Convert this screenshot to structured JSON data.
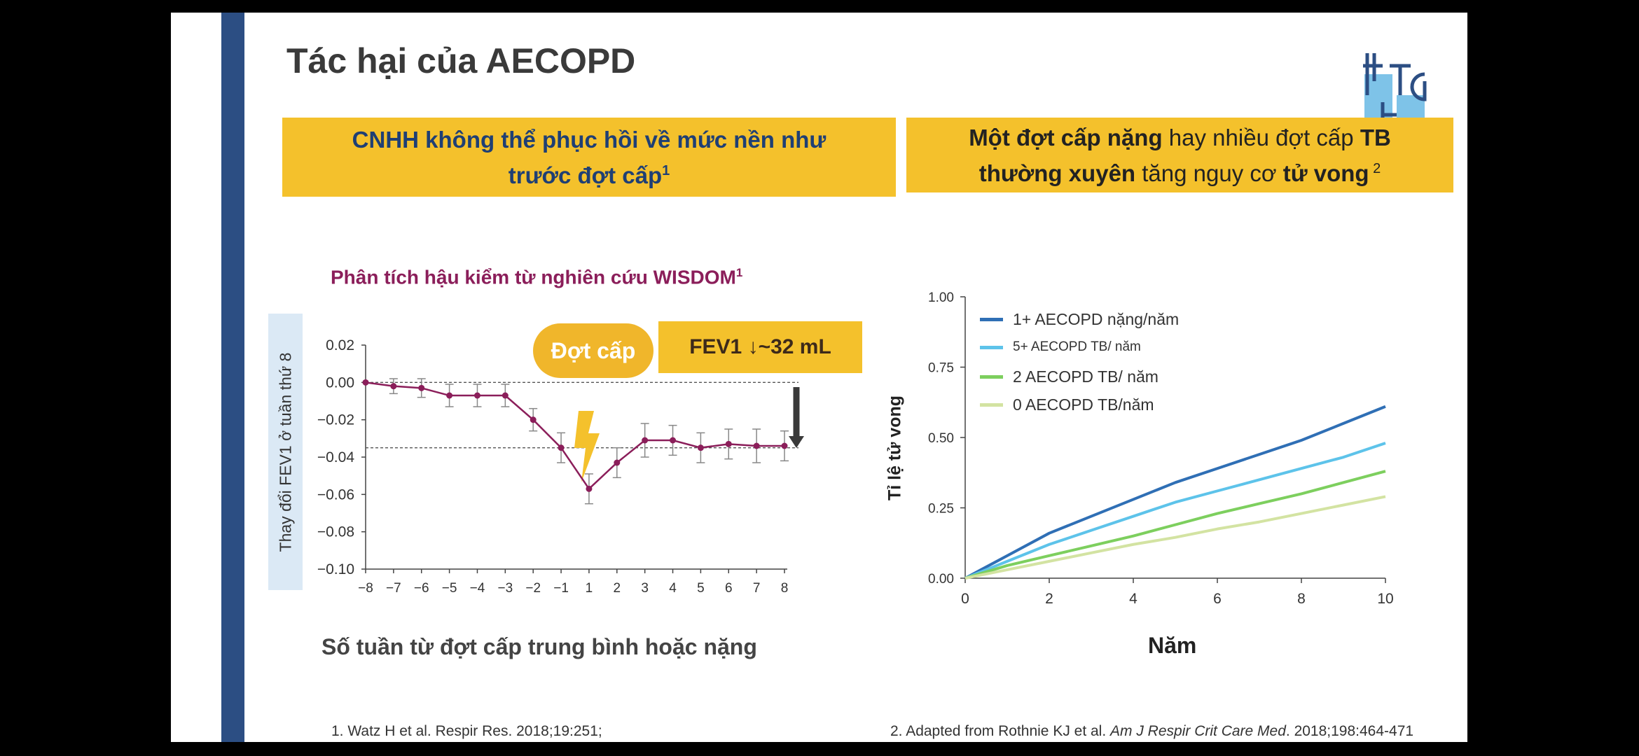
{
  "slide": {
    "title": "Tác hại của AECOPD",
    "banner_left": {
      "line1": "CNHH không thể phục hồi về mức nền như",
      "line2": "trước đợt cấp",
      "sup": "1"
    },
    "banner_right": {
      "p1_bold": "Một đợt cấp nặng",
      "p1_rest": " hay nhiều đợt cấp ",
      "p1_bold2": "TB",
      "p2_bold": "thường xuyên",
      "p2_rest": " tăng nguy cơ ",
      "p2_bold2": "tử vong",
      "sup": " 2"
    },
    "left_subtitle": "Phân tích hậu kiểm từ nghiên cứu WISDOM",
    "left_subtitle_sup": "1",
    "pill_label": "Đợt cấp",
    "fev_label": "FEV1 ↓~32 mL",
    "ref1": "1. Watz H et al. Respir Res. 2018;19:251;",
    "ref2_prefix": "2. Adapted from Rothnie KJ et al. ",
    "ref2_journal": "Am J Respir Crit Care Med",
    "ref2_suffix": ". 2018;198:464-471"
  },
  "chart_data": [
    {
      "type": "line",
      "title": "",
      "xlabel": "Số tuần từ đợt cấp trung bình hoặc nặng",
      "ylabel": "Thay đổi FEV1 ở tuần thứ 8",
      "x": [
        -8,
        -7,
        -6,
        -5,
        -4,
        -3,
        -2,
        -1,
        1,
        2,
        3,
        4,
        5,
        6,
        7,
        8
      ],
      "xticks": [
        "−8",
        "−7",
        "−6",
        "−5",
        "−4",
        "−3",
        "−2",
        "−1",
        "1",
        "2",
        "3",
        "4",
        "5",
        "6",
        "7",
        "8"
      ],
      "yticks": [
        "0.02",
        "0.00",
        "−0.02",
        "−0.04",
        "−0.06",
        "−0.08",
        "−0.10"
      ],
      "ylim": [
        -0.1,
        0.02
      ],
      "series": [
        {
          "values": [
            0.0,
            -0.002,
            -0.003,
            -0.007,
            -0.007,
            -0.007,
            -0.02,
            -0.035,
            -0.057,
            -0.043,
            -0.031,
            -0.031,
            -0.035,
            -0.033,
            -0.034,
            -0.034
          ],
          "error": [
            0.0,
            0.004,
            0.005,
            0.006,
            0.006,
            0.006,
            0.006,
            0.008,
            0.008,
            0.008,
            0.009,
            0.008,
            0.008,
            0.008,
            0.009,
            0.008
          ],
          "color": "#8b1e5a"
        }
      ],
      "reference_lines": [
        0.0,
        -0.035
      ],
      "grid": false
    },
    {
      "type": "line",
      "title": "",
      "xlabel": "Năm",
      "ylabel": "Tỉ lệ tử vong",
      "xticks": [
        "0",
        "2",
        "4",
        "6",
        "8",
        "10"
      ],
      "yticks": [
        "0.00",
        "0.25",
        "0.50",
        "0.75",
        "1.00"
      ],
      "xlim": [
        0,
        10
      ],
      "ylim": [
        0,
        1
      ],
      "legend_position": "top-left",
      "series": [
        {
          "name": "1+ AECOPD nặng/năm",
          "color": "#2f6fb5",
          "x": [
            0,
            1,
            2,
            3,
            4,
            5,
            6,
            7,
            8,
            9,
            10
          ],
          "values": [
            0,
            0.08,
            0.16,
            0.22,
            0.28,
            0.34,
            0.39,
            0.44,
            0.49,
            0.55,
            0.61
          ]
        },
        {
          "name": "5+ AECOPD TB/ năm",
          "color": "#5dc3ea",
          "x": [
            0,
            1,
            2,
            3,
            4,
            5,
            6,
            7,
            8,
            9,
            10
          ],
          "values": [
            0,
            0.06,
            0.12,
            0.17,
            0.22,
            0.27,
            0.31,
            0.35,
            0.39,
            0.43,
            0.48
          ]
        },
        {
          "name": "2 AECOPD TB/ năm",
          "color": "#7dcf5e",
          "x": [
            0,
            1,
            2,
            3,
            4,
            5,
            6,
            7,
            8,
            9,
            10
          ],
          "values": [
            0,
            0.045,
            0.08,
            0.115,
            0.15,
            0.19,
            0.23,
            0.265,
            0.3,
            0.34,
            0.38
          ]
        },
        {
          "name": "0 AECOPD TB/năm",
          "color": "#d3e3a2",
          "x": [
            0,
            1,
            2,
            3,
            4,
            5,
            6,
            7,
            8,
            9,
            10
          ],
          "values": [
            0,
            0.03,
            0.06,
            0.09,
            0.12,
            0.145,
            0.175,
            0.2,
            0.23,
            0.26,
            0.29
          ]
        }
      ],
      "grid": false
    }
  ]
}
